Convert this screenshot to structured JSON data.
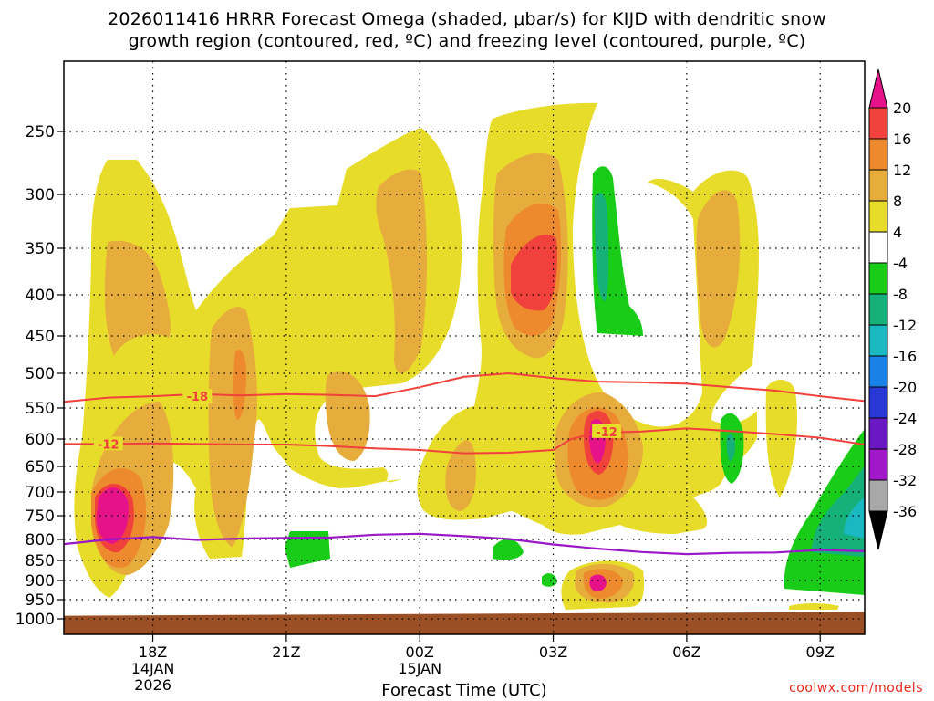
{
  "chart_data": {
    "type": "contour-time-height",
    "title_line1": "2026011416 HRRR Forecast Omega (shaded, μbar/s) for KIJD with dendritic snow",
    "title_line2": "growth region (contoured, red, ºC) and freezing level (contoured, purple, ºC)",
    "xlabel": "Forecast Time (UTC)",
    "ylabel": "",
    "x_range_hours": [
      16.0,
      34.0
    ],
    "x_ticks": [
      {
        "h": 18,
        "label": "18Z",
        "sub1": "14JAN",
        "sub2": "2026"
      },
      {
        "h": 21,
        "label": "21Z",
        "sub1": "",
        "sub2": ""
      },
      {
        "h": 24,
        "label": "00Z",
        "sub1": "15JAN",
        "sub2": ""
      },
      {
        "h": 27,
        "label": "03Z",
        "sub1": "",
        "sub2": ""
      },
      {
        "h": 30,
        "label": "06Z",
        "sub1": "",
        "sub2": ""
      },
      {
        "h": 33,
        "label": "09Z",
        "sub1": "",
        "sub2": ""
      }
    ],
    "y_levels_hpa": [
      250,
      300,
      350,
      400,
      450,
      500,
      550,
      600,
      650,
      700,
      750,
      800,
      850,
      900,
      950,
      1000
    ],
    "colorbar": {
      "labels": [
        "20",
        "16",
        "12",
        "8",
        "4",
        "-4",
        "-8",
        "-12",
        "-16",
        "-20",
        "-24",
        "-28",
        "-32",
        "-36"
      ],
      "colors": [
        "#e6128a",
        "#f0413c",
        "#ee8a2e",
        "#e6ac3c",
        "#e8dc2a",
        "#ffffff",
        "#18cc18",
        "#16b07a",
        "#1ab8c0",
        "#1a82e6",
        "#2838d6",
        "#6a18c2",
        "#a018c8",
        "#a8a8a8",
        "#000000"
      ]
    },
    "dgz_contours": [
      {
        "label": "-18",
        "h": [
          16.0,
          17.0,
          18.0,
          19.0,
          20.0,
          21.0,
          22.0,
          23.0,
          24.0,
          25.0,
          26.0,
          27.0,
          28.0,
          29.0,
          30.0,
          31.0,
          32.0,
          33.0,
          34.0
        ],
        "p": [
          541,
          535,
          533,
          530,
          532,
          530,
          531,
          533,
          520,
          505,
          500,
          507,
          512,
          513,
          515,
          520,
          525,
          533,
          540
        ]
      },
      {
        "label": "-12",
        "h": [
          16.0,
          17.0,
          18.0,
          19.0,
          20.0,
          21.0,
          22.0,
          23.0,
          24.0,
          25.0,
          26.0,
          27.0,
          27.4,
          28.0,
          29.0,
          30.0,
          31.0,
          32.0,
          33.0,
          34.0
        ],
        "p": [
          609,
          609,
          608,
          609,
          610,
          610,
          613,
          617,
          620,
          626,
          625,
          620,
          600,
          590,
          588,
          583,
          587,
          592,
          598,
          610
        ]
      }
    ],
    "freezing_level": {
      "h": [
        16.0,
        17.0,
        18.0,
        19.0,
        20.0,
        21.0,
        22.0,
        23.0,
        24.0,
        25.0,
        26.0,
        27.0,
        28.0,
        29.0,
        30.0,
        31.0,
        32.0,
        33.0,
        34.0
      ],
      "p": [
        811,
        800,
        795,
        801,
        798,
        797,
        796,
        790,
        788,
        793,
        799,
        812,
        822,
        830,
        835,
        832,
        831,
        825,
        828
      ]
    },
    "ground": {
      "h": [
        16.0,
        34.0
      ],
      "p_top": [
        992,
        982
      ]
    }
  },
  "credit": "coolwx.com/models"
}
